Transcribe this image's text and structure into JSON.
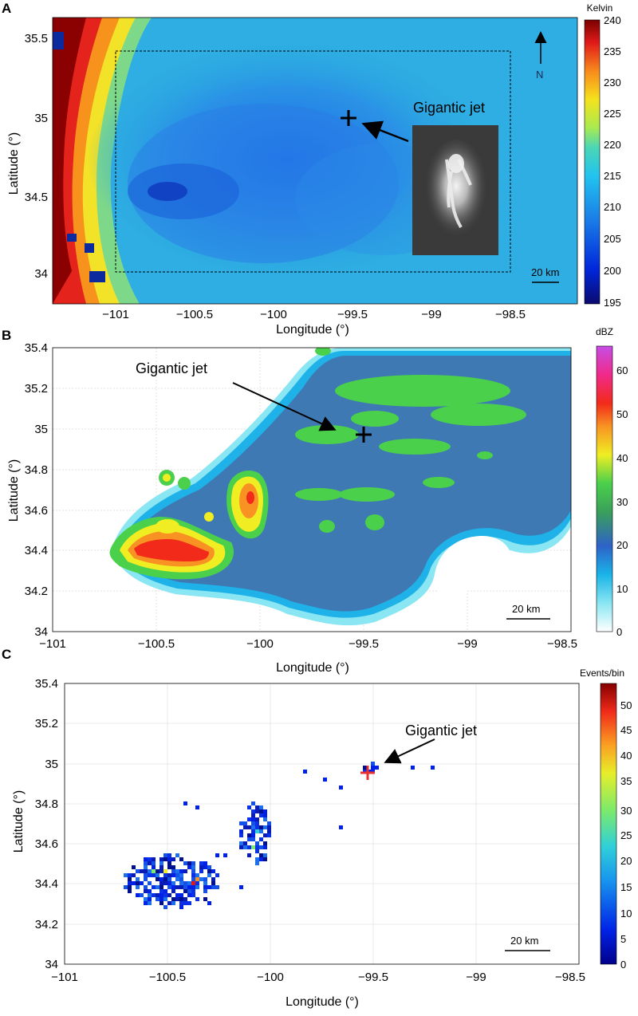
{
  "panelA": {
    "letter": "A",
    "xlabel": "Longitude (°)",
    "ylabel": "Latitude (°)",
    "xticks": [
      "−101",
      "−100.5",
      "−100",
      "−99.5",
      "−99",
      "−98.5"
    ],
    "yticks": [
      "35.5",
      "35",
      "34.5",
      "34"
    ],
    "annotation": "Gigantic jet",
    "north": "N",
    "scale": "20 km",
    "colorbar": {
      "title": "Kelvin",
      "ticks": [
        "240",
        "235",
        "230",
        "225",
        "220",
        "215",
        "210",
        "205",
        "200",
        "195"
      ]
    }
  },
  "panelB": {
    "letter": "B",
    "xlabel": "Longitude (°)",
    "ylabel": "Latitude (°)",
    "xticks": [
      "−101",
      "−100.5",
      "−100",
      "−99.5",
      "−99",
      "−98.5"
    ],
    "yticks": [
      "35.4",
      "35.2",
      "35",
      "34.8",
      "34.6",
      "34.4",
      "34.2",
      "34"
    ],
    "annotation": "Gigantic jet",
    "scale": "20 km",
    "colorbar": {
      "title": "dBZ",
      "ticks": [
        "60",
        "50",
        "40",
        "30",
        "20",
        "10",
        "0"
      ]
    }
  },
  "panelC": {
    "letter": "C",
    "xlabel": "Longitude (°)",
    "ylabel": "Latitude (°)",
    "xticks": [
      "−101",
      "−100.5",
      "−100",
      "−99.5",
      "−99",
      "−98.5"
    ],
    "yticks": [
      "35.4",
      "35.2",
      "35",
      "34.8",
      "34.6",
      "34.4",
      "34.2",
      "34"
    ],
    "annotation": "Gigantic jet",
    "scale": "20 km",
    "colorbar": {
      "title": "Events/bin",
      "ticks": [
        "50",
        "45",
        "40",
        "35",
        "30",
        "25",
        "20",
        "15",
        "10",
        "5",
        "0"
      ]
    }
  },
  "colors": {
    "jet_marker_ab": "#000000",
    "jet_marker_c": "#e83030",
    "radar_fill": "#3f79b3",
    "brightness_temp_background": "#2aa7e0"
  }
}
